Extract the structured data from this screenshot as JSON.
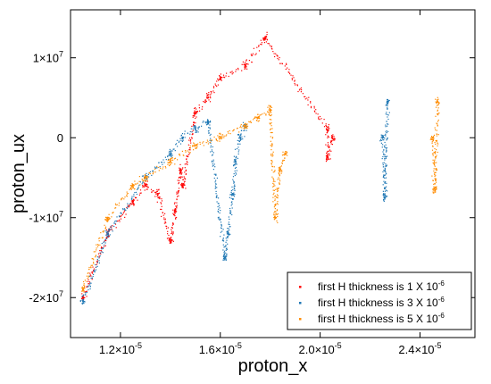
{
  "chart_data": {
    "type": "scatter",
    "xlabel": "proton_x",
    "ylabel": "proton_ux",
    "xlim": [
      1e-05,
      2.62e-05
    ],
    "ylim": [
      -25000000.0,
      16000000.0
    ],
    "grid": false,
    "legend_position": "bottom-right",
    "x_ticks": [
      {
        "value": 1.2e-05,
        "mantissa": "1.2",
        "sep": "×10",
        "exp": "-5"
      },
      {
        "value": 1.6e-05,
        "mantissa": "1.6",
        "sep": "×10",
        "exp": "-5"
      },
      {
        "value": 2e-05,
        "mantissa": "2.0",
        "sep": "×10",
        "exp": "-5"
      },
      {
        "value": 2.4e-05,
        "mantissa": "2.4",
        "sep": "×10",
        "exp": "-5"
      }
    ],
    "y_ticks": [
      {
        "value": 10000000.0,
        "mantissa": "1",
        "sep": "×10",
        "exp": "7"
      },
      {
        "value": 0,
        "mantissa": "0",
        "sep": "",
        "exp": ""
      },
      {
        "value": -10000000.0,
        "mantissa": "-1",
        "sep": "×10",
        "exp": "7"
      },
      {
        "value": -20000000.0,
        "mantissa": "-2",
        "sep": "×10",
        "exp": "7"
      }
    ],
    "series": [
      {
        "name": "first H thickness is 1 X 10",
        "name_exp": "-6",
        "color": "#ff0000",
        "points": [
          [
            1.05e-05,
            -20000000.0
          ],
          [
            1.15e-05,
            -12000000.0
          ],
          [
            1.25e-05,
            -8000000.0
          ],
          [
            1.3e-05,
            -6000000.0
          ],
          [
            1.35e-05,
            -7000000.0
          ],
          [
            1.4e-05,
            -13000000.0
          ],
          [
            1.42e-05,
            -9000000.0
          ],
          [
            1.44e-05,
            -4000000.0
          ],
          [
            1.45e-05,
            -6000000.0
          ],
          [
            1.5e-05,
            3000000.0
          ],
          [
            1.55e-05,
            5000000.0
          ],
          [
            1.6e-05,
            7500000.0
          ],
          [
            1.7e-05,
            9000000.0
          ],
          [
            1.78e-05,
            12500000.0
          ],
          [
            2.03e-05,
            1000000.0
          ],
          [
            2.03e-05,
            -2500000.0
          ],
          [
            2.05e-05,
            -100000.0
          ]
        ]
      },
      {
        "name": "first H thickness is 3 X 10",
        "name_exp": "-6",
        "color": "#1f77b4",
        "points": [
          [
            1.05e-05,
            -20500000.0
          ],
          [
            1.15e-05,
            -12000000.0
          ],
          [
            1.3e-05,
            -5000000.0
          ],
          [
            1.4e-05,
            -2000000.0
          ],
          [
            1.45e-05,
            0
          ],
          [
            1.5e-05,
            1000000.0
          ],
          [
            1.55e-05,
            2000000.0
          ],
          [
            1.62e-05,
            -15000000.0
          ],
          [
            1.63e-05,
            -12000000.0
          ],
          [
            1.65e-05,
            -7000000.0
          ],
          [
            1.66e-05,
            -3000000.0
          ],
          [
            1.68e-05,
            0
          ],
          [
            1.7e-05,
            1500000.0
          ],
          [
            2.25e-05,
            0
          ],
          [
            2.26e-05,
            -7500000.0
          ],
          [
            2.27e-05,
            4500000.0
          ]
        ]
      },
      {
        "name": "first H thickness is 5 X 10",
        "name_exp": "-6",
        "color": "#ff8c00",
        "points": [
          [
            1.05e-05,
            -19000000.0
          ],
          [
            1.15e-05,
            -10000000.0
          ],
          [
            1.25e-05,
            -6000000.0
          ],
          [
            1.3e-05,
            -5000000.0
          ],
          [
            1.4e-05,
            -3000000.0
          ],
          [
            1.5e-05,
            -1000000.0
          ],
          [
            1.6e-05,
            0
          ],
          [
            1.7e-05,
            1500000.0
          ],
          [
            1.75e-05,
            2500000.0
          ],
          [
            1.8e-05,
            3500000.0
          ],
          [
            1.82e-05,
            -10000000.0
          ],
          [
            1.84e-05,
            -4000000.0
          ],
          [
            1.86e-05,
            -2000000.0
          ],
          [
            2.45e-05,
            0
          ],
          [
            2.46e-05,
            -6500000.0
          ],
          [
            2.47e-05,
            4500000.0
          ]
        ]
      }
    ]
  }
}
